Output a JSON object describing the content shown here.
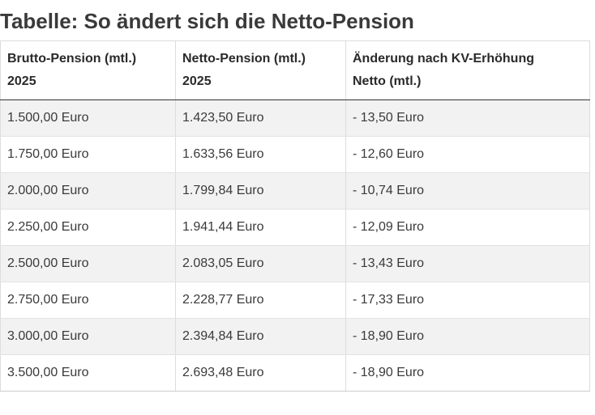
{
  "title": "Tabelle: So ändert sich die Netto-Pension",
  "table": {
    "headers": [
      [
        "Brutto-Pension (mtl.)",
        "2025"
      ],
      [
        "Netto-Pension (mtl.)",
        "2025"
      ],
      [
        "Änderung nach KV-Erhöhung",
        "Netto (mtl.)"
      ]
    ],
    "rows": [
      [
        "1.500,00 Euro",
        "1.423,50 Euro",
        "- 13,50 Euro"
      ],
      [
        "1.750,00 Euro",
        "1.633,56 Euro",
        "- 12,60 Euro"
      ],
      [
        "2.000,00 Euro",
        "1.799,84 Euro",
        "- 10,74 Euro"
      ],
      [
        "2.250,00 Euro",
        "1.941,44 Euro",
        "- 12,09 Euro"
      ],
      [
        "2.500,00 Euro",
        "2.083,05 Euro",
        "- 13,43 Euro"
      ],
      [
        "2.750,00 Euro",
        "2.228,77 Euro",
        "- 17,33 Euro"
      ],
      [
        "3.000,00 Euro",
        "2.394,84 Euro",
        "- 18,90 Euro"
      ],
      [
        "3.500,00 Euro",
        "2.693,48 Euro",
        "- 18,90 Euro"
      ]
    ]
  }
}
